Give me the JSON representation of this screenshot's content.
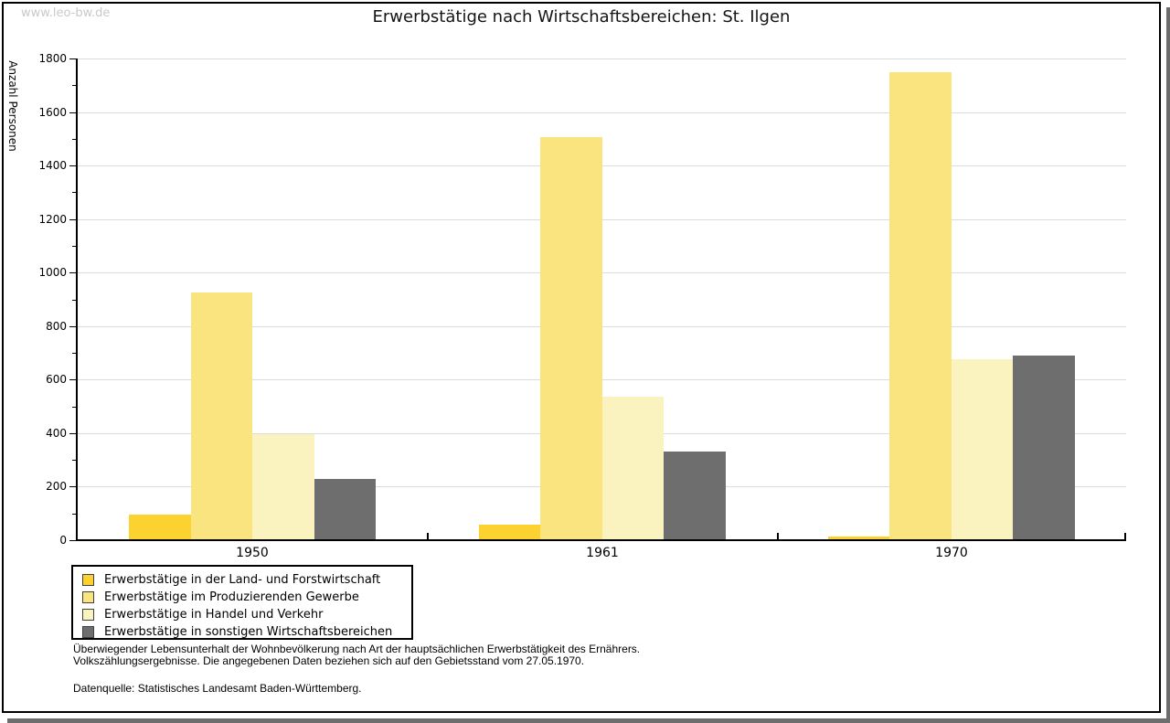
{
  "watermark": "www.leo-bw.de",
  "chart_data": {
    "type": "bar",
    "title": "Erwerbstätige nach Wirtschaftsbereichen: St. Ilgen",
    "ylabel": "Anzahl Personen",
    "xlabel": "",
    "categories": [
      "1950",
      "1961",
      "1970"
    ],
    "series": [
      {
        "name": "Erwerbstätige in der Land- und Forstwirtschaft",
        "color": "#FBD22F",
        "values": [
          95,
          57,
          15
        ]
      },
      {
        "name": "Erwerbstätige im Produzierenden Gewerbe",
        "color": "#FAE480",
        "values": [
          925,
          1505,
          1750
        ]
      },
      {
        "name": "Erwerbstätige in Handel und Verkehr",
        "color": "#FBF3BF",
        "values": [
          395,
          535,
          675
        ]
      },
      {
        "name": "Erwerbstätige in sonstigen Wirtschaftsbereichen",
        "color": "#6E6E6E",
        "values": [
          230,
          330,
          690
        ]
      }
    ],
    "ylim": [
      0,
      1800
    ],
    "ytick_step": 200,
    "ytick_minor_step": 100,
    "grid": true,
    "legend_position": "bottom-left"
  },
  "notes": {
    "line1": "Überwiegender Lebensunterhalt der Wohnbevölkerung nach Art der hauptsächlichen Erwerbstätigkeit des Ernährers.",
    "line2": "Volkszählungsergebnisse. Die angegebenen Daten beziehen sich auf den Gebietsstand vom 27.05.1970.",
    "source": "Datenquelle: Statistisches Landesamt Baden-Württemberg."
  },
  "colors": {
    "grid": "#DCDCDC",
    "axis": "#000000",
    "watermark": "#C9C9C9",
    "shadow": "#6E6E6E",
    "background": "#FFFFFF"
  }
}
